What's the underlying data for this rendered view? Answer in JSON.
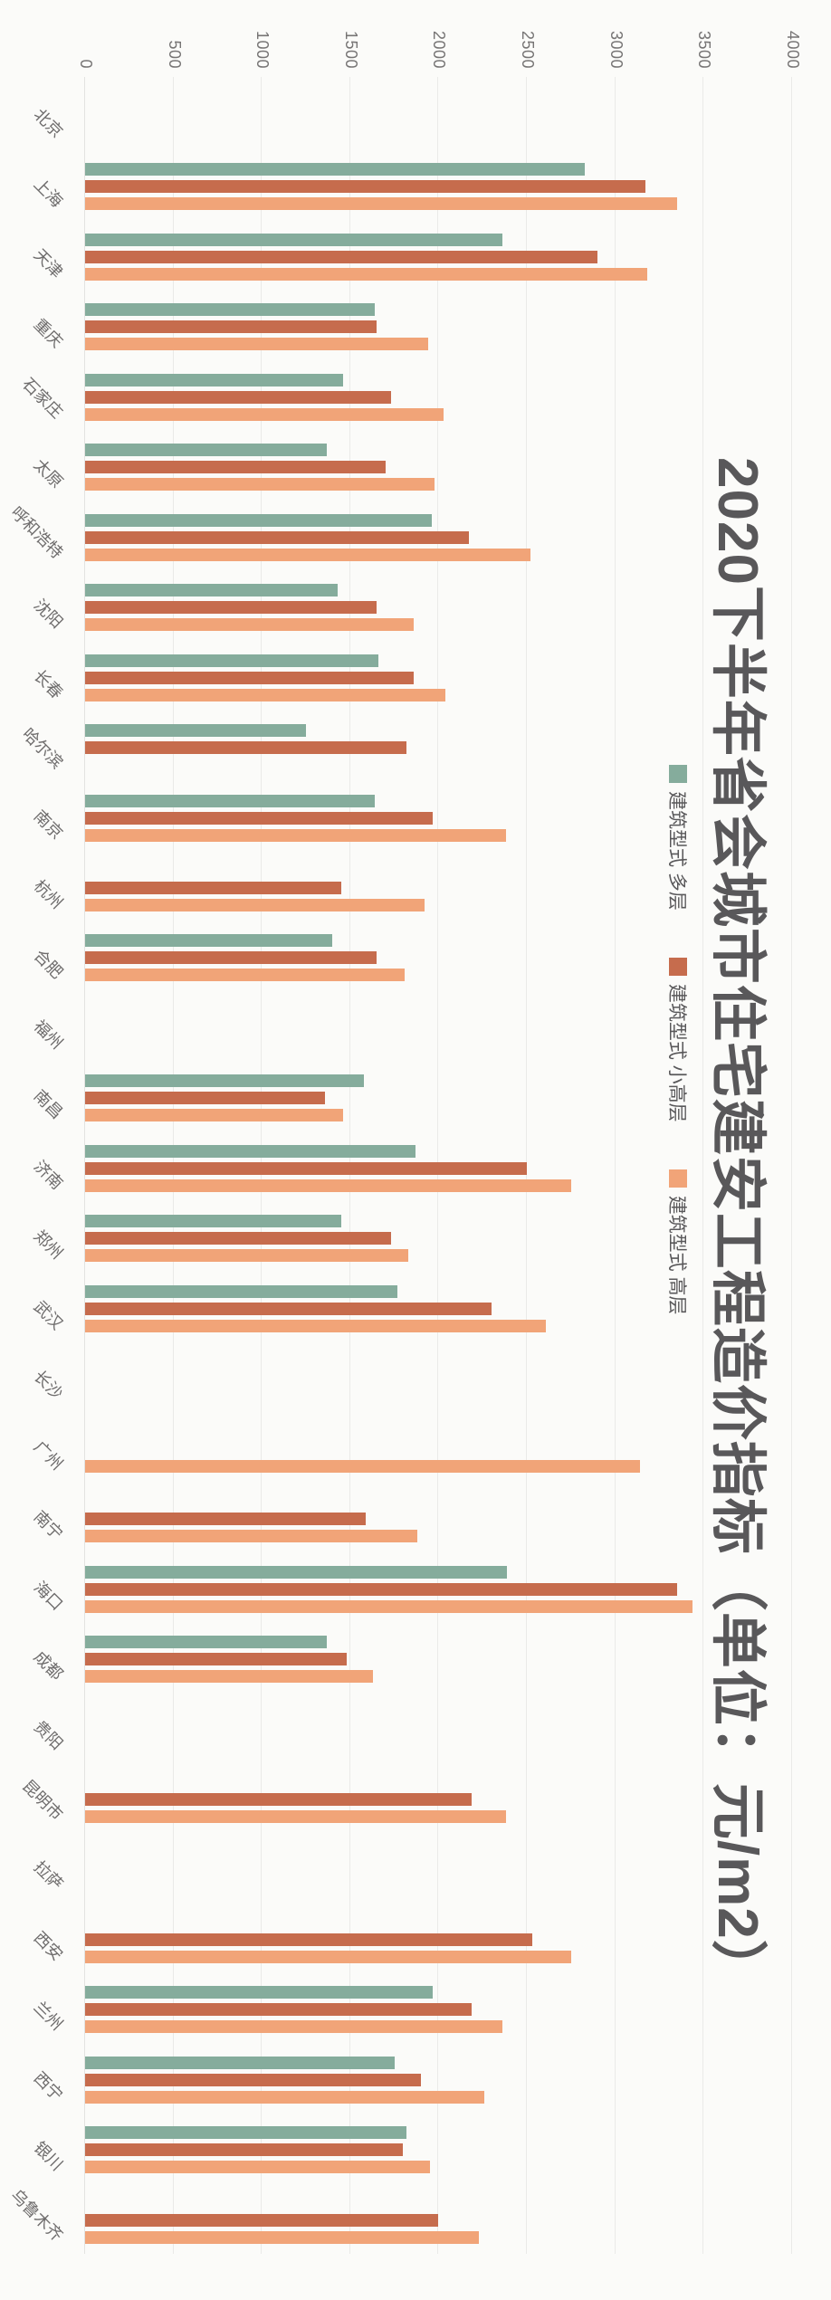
{
  "title": "2020下半年省会城市住宅建安工程造价指标（单位：元/m2）",
  "legend": [
    {
      "label": "建筑型式 多层",
      "color": "#85ac9c"
    },
    {
      "label": "建筑型式 小高层",
      "color": "#c66c4d"
    },
    {
      "label": "建筑型式 高层",
      "color": "#f1a478"
    }
  ],
  "colors": {
    "background": "#fbfbf9",
    "gridline": "#eaeae8",
    "title_text": "#59585a",
    "axis_text": "#6e6c6c"
  },
  "chart_data": {
    "type": "bar",
    "note": "landscape grouped column chart rotated 90° clockwise in the screenshot; values in 元/m2",
    "title": "2020下半年省会城市住宅建安工程造价指标（单位：元/m2）",
    "xlabel": "",
    "ylabel": "",
    "value_axis": {
      "min": 0,
      "max": 4000,
      "step": 500,
      "ticks": [
        "0",
        "500",
        "1000",
        "1500",
        "2000",
        "2500",
        "3000",
        "3500",
        "4000"
      ]
    },
    "grid": true,
    "legend_position": "under-title",
    "categories": [
      "北京",
      "上海",
      "天津",
      "重庆",
      "石家庄",
      "太原",
      "呼和浩特",
      "沈阳",
      "长春",
      "哈尔滨",
      "南京",
      "杭州",
      "合肥",
      "福州",
      "南昌",
      "济南",
      "郑州",
      "武汉",
      "长沙",
      "广州",
      "南宁",
      "海口",
      "成都",
      "贵阳",
      "昆明市",
      "拉萨",
      "西安",
      "兰州",
      "西宁",
      "银川",
      "乌鲁木齐"
    ],
    "series": [
      {
        "name": "建筑型式 多层",
        "color": "#85ac9c",
        "values": [
          null,
          2830,
          2360,
          1640,
          1460,
          1370,
          1960,
          1430,
          1660,
          1250,
          1640,
          null,
          1400,
          null,
          1580,
          1870,
          1450,
          1770,
          null,
          null,
          null,
          2390,
          1370,
          null,
          null,
          null,
          null,
          1970,
          1750,
          1820,
          null
        ]
      },
      {
        "name": "建筑型式 小高层",
        "color": "#c66c4d",
        "values": [
          null,
          3170,
          2900,
          1650,
          1730,
          1700,
          2170,
          1650,
          1860,
          1820,
          1970,
          1450,
          1650,
          null,
          1360,
          2500,
          1730,
          2300,
          null,
          null,
          1590,
          3350,
          1480,
          null,
          2190,
          null,
          2530,
          2190,
          1900,
          1800,
          2000
        ]
      },
      {
        "name": "建筑型式 高层",
        "color": "#f1a478",
        "values": [
          null,
          3350,
          3180,
          1940,
          2030,
          1980,
          2520,
          1860,
          2040,
          null,
          2380,
          1920,
          1810,
          null,
          1460,
          2750,
          1830,
          2610,
          null,
          3140,
          1880,
          3440,
          1630,
          null,
          2380,
          null,
          2750,
          2360,
          2260,
          1950,
          2230
        ]
      }
    ]
  }
}
